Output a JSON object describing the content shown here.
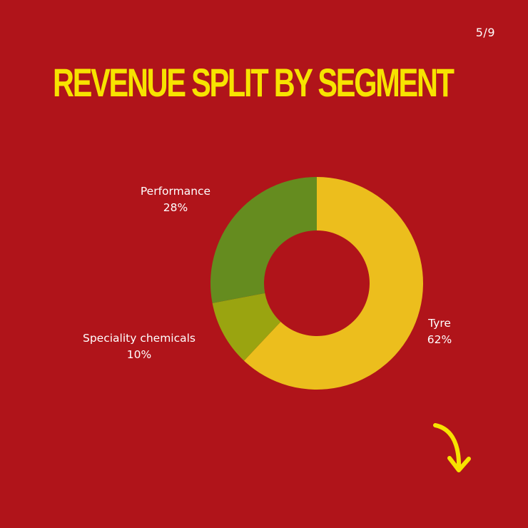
{
  "page_counter": "5/9",
  "title": "REVENUE SPLIT BY SEGMENT",
  "colors": {
    "background": "#b0141a",
    "title": "#f7e300",
    "arrow": "#f7e300"
  },
  "arrow_icon": "curved-arrow-down-right-icon",
  "chart_data": {
    "type": "pie",
    "donut": true,
    "slices": [
      {
        "label": "Tyre",
        "value": 62,
        "value_label": "62%",
        "color": "#ecbe1d"
      },
      {
        "label": "Speciality chemicals",
        "value": 10,
        "value_label": "10%",
        "color": "#9aa410"
      },
      {
        "label": "Performance",
        "value": 28,
        "value_label": "28%",
        "color": "#658c1f"
      }
    ],
    "start": "top",
    "direction": "clockwise",
    "legend": "none"
  }
}
